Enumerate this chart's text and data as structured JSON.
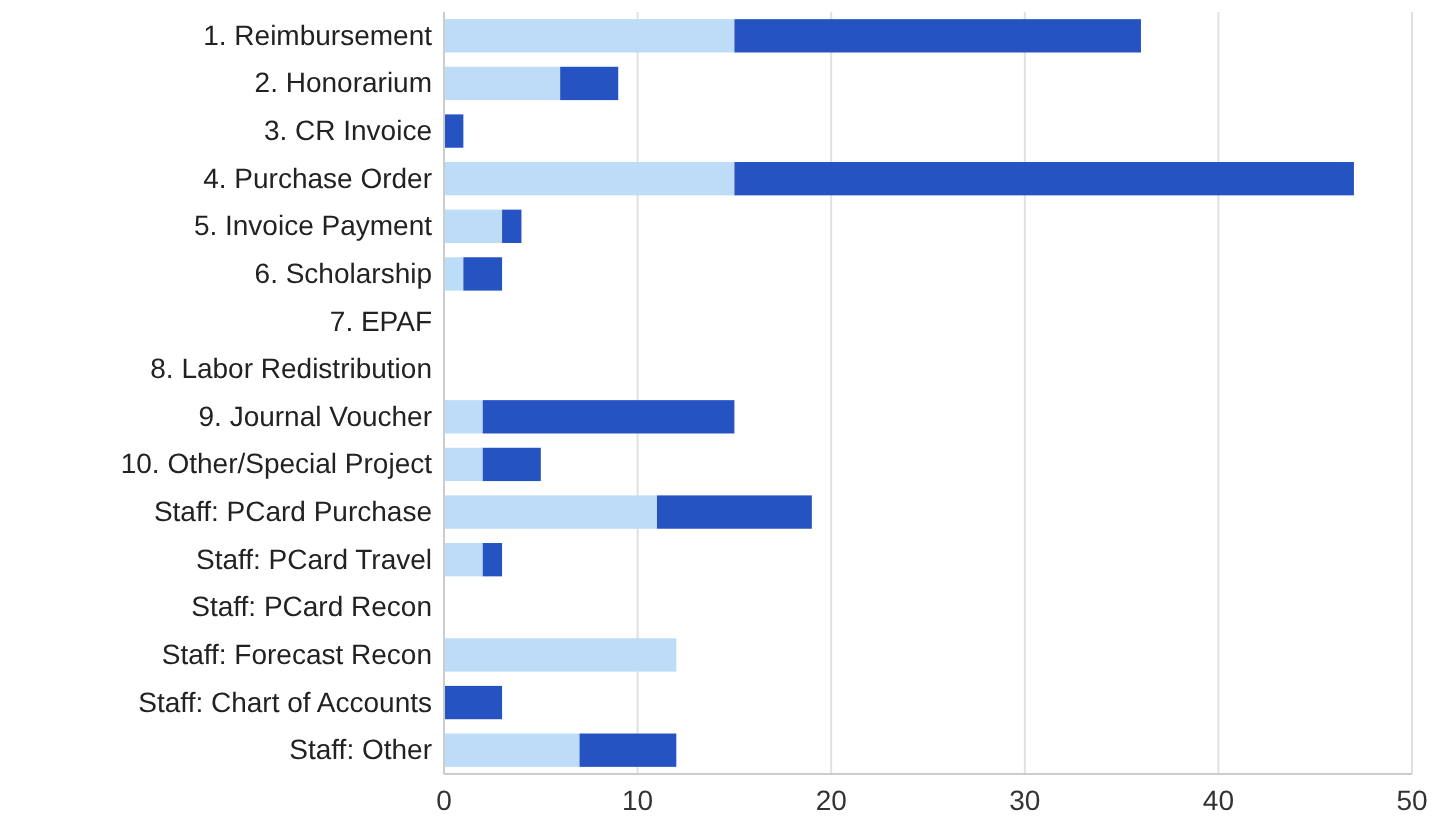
{
  "chart_data": {
    "type": "bar",
    "orientation": "horizontal",
    "stacked": true,
    "categories": [
      "1. Reimbursement",
      "2. Honorarium",
      "3. CR Invoice",
      "4. Purchase Order",
      "5. Invoice Payment",
      "6. Scholarship",
      "7. EPAF",
      "8. Labor Redistribution",
      "9. Journal Voucher",
      "10. Other/Special Project",
      "Staff: PCard Purchase",
      "Staff: PCard Travel",
      "Staff: PCard Recon",
      "Staff: Forecast Recon",
      "Staff: Chart of Accounts",
      "Staff: Other"
    ],
    "series": [
      {
        "color": "#bcdcf7",
        "values": [
          15,
          6,
          0,
          15,
          3,
          1,
          0,
          0,
          2,
          2,
          11,
          2,
          0,
          12,
          0,
          7
        ]
      },
      {
        "color": "#2553c2",
        "values": [
          21,
          3,
          1,
          32,
          1,
          2,
          0,
          0,
          13,
          3,
          8,
          1,
          0,
          0,
          3,
          5
        ]
      }
    ],
    "xlim": [
      0,
      50
    ],
    "xticks": [
      0,
      10,
      20,
      30,
      40,
      50
    ],
    "grid": "x"
  }
}
